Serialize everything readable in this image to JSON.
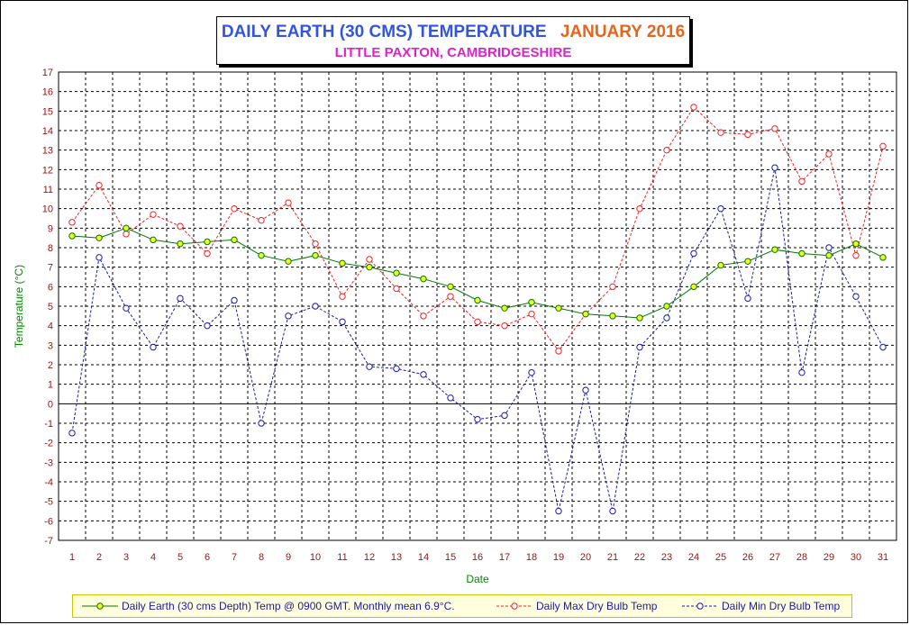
{
  "chart_data": {
    "type": "line",
    "title": "DAILY EARTH (30 CMS) TEMPERATURE",
    "title_month": "JANUARY 2016",
    "subtitle": "LITTLE PAXTON, CAMBRIDGESHIRE",
    "xlabel": "Date",
    "ylabel": "Temperature (°C)",
    "ylim": [
      -7,
      17
    ],
    "x": [
      1,
      2,
      3,
      4,
      5,
      6,
      7,
      8,
      9,
      10,
      11,
      12,
      13,
      14,
      15,
      16,
      17,
      18,
      19,
      20,
      21,
      22,
      23,
      24,
      25,
      26,
      27,
      28,
      29,
      30,
      31
    ],
    "grid": true,
    "legend_position": "bottom",
    "series": [
      {
        "name": "Daily Earth (30 cms Depth) Temp @ 0900 GMT. Monthly mean 6.9°C.",
        "color": "#007700",
        "marker_color": "#eeff22",
        "style": "solid",
        "values": [
          8.6,
          8.5,
          9.0,
          8.4,
          8.2,
          8.3,
          8.4,
          7.6,
          7.3,
          7.6,
          7.2,
          7.0,
          6.7,
          6.4,
          6.0,
          5.3,
          4.9,
          5.2,
          4.9,
          4.6,
          4.5,
          4.4,
          5.0,
          6.0,
          7.1,
          7.3,
          7.9,
          7.7,
          7.6,
          8.2,
          7.5
        ]
      },
      {
        "name": "Daily Max Dry Bulb Temp",
        "color": "#ee2222",
        "marker_color": "#ffffff",
        "style": "dashed",
        "values": [
          9.3,
          11.2,
          8.7,
          9.7,
          9.1,
          7.7,
          10.0,
          9.4,
          10.3,
          8.2,
          5.5,
          7.4,
          5.9,
          4.5,
          5.5,
          4.2,
          4.0,
          4.6,
          2.7,
          4.6,
          6.0,
          10.0,
          13.0,
          15.2,
          13.9,
          13.8,
          14.1,
          11.4,
          12.8,
          7.6,
          13.2
        ]
      },
      {
        "name": "Daily Min Dry Bulb Temp",
        "color": "#1a1aa0",
        "marker_color": "#ffffff",
        "style": "dashed",
        "values": [
          -1.5,
          7.5,
          4.9,
          2.9,
          5.4,
          4.0,
          5.3,
          -1.0,
          4.5,
          5.0,
          4.2,
          1.9,
          1.8,
          1.5,
          0.3,
          -0.8,
          -0.6,
          1.6,
          -5.5,
          0.7,
          -5.5,
          2.9,
          4.4,
          7.7,
          10.0,
          5.4,
          12.1,
          1.6,
          8.0,
          5.5,
          2.9
        ]
      }
    ]
  }
}
